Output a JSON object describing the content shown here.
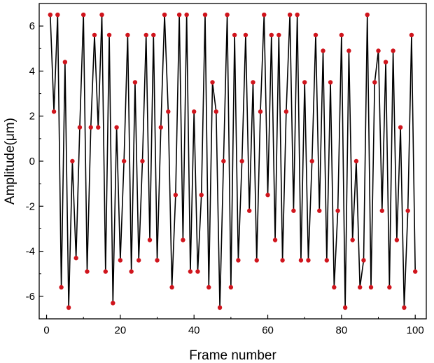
{
  "chart_data": {
    "type": "line",
    "xlabel": "Frame number",
    "ylabel": "Amplitude(μm)",
    "xlim": [
      -2,
      103
    ],
    "ylim": [
      -7,
      7
    ],
    "xticks": [
      0,
      20,
      40,
      60,
      80,
      100
    ],
    "yticks": [
      -6,
      -4,
      -2,
      0,
      2,
      4,
      6
    ],
    "xticks_labels": [
      "0",
      "20",
      "40",
      "60",
      "80",
      "100"
    ],
    "yticks_labels": [
      "-6",
      "-4",
      "-2",
      "0",
      "2",
      "4",
      "6"
    ],
    "grid": false,
    "legend": "none",
    "line_color": "#000000",
    "marker_color": "#d0141c",
    "series": [
      {
        "x": [
          1,
          2,
          3,
          4,
          5,
          6,
          7,
          8,
          9,
          10,
          11,
          12,
          13,
          14,
          15,
          16,
          17,
          18,
          19,
          20,
          21,
          22,
          23,
          24,
          25,
          26,
          27,
          28,
          29,
          30,
          31,
          32,
          33,
          34,
          35,
          36,
          37,
          38,
          39,
          40,
          41,
          42,
          43,
          44,
          45,
          46,
          47,
          48,
          49,
          50,
          51,
          52,
          53,
          54,
          55,
          56,
          57,
          58,
          59,
          60,
          61,
          62,
          63,
          64,
          65,
          66,
          67,
          68,
          69,
          70,
          71,
          72,
          73,
          74,
          75,
          76,
          77,
          78,
          79,
          80,
          81,
          82,
          83,
          84,
          85,
          86,
          87,
          88,
          89,
          90,
          91,
          92,
          93,
          94,
          95,
          96,
          97,
          98,
          99,
          100
        ],
        "values": [
          6.5,
          2.2,
          6.5,
          -5.6,
          4.4,
          -6.5,
          0,
          -4.3,
          1.5,
          6.5,
          -4.9,
          1.5,
          5.6,
          1.5,
          6.5,
          -4.9,
          5.6,
          -6.3,
          1.5,
          -4.4,
          0,
          5.6,
          -4.9,
          3.5,
          -4.4,
          0,
          5.6,
          -3.5,
          5.6,
          -4.4,
          1.5,
          6.5,
          2.2,
          -5.6,
          -1.5,
          6.5,
          -3.5,
          6.5,
          -4.9,
          2.2,
          -4.9,
          -1.5,
          6.5,
          -5.6,
          3.5,
          2.2,
          -6.5,
          0,
          6.5,
          -5.6,
          5.6,
          -4.4,
          0,
          5.6,
          -2.2,
          3.5,
          -4.4,
          2.2,
          6.5,
          -1.5,
          5.6,
          -3.5,
          5.6,
          -4.4,
          2.2,
          6.5,
          -2.2,
          6.5,
          -4.4,
          3.5,
          -4.4,
          0,
          5.6,
          -2.2,
          4.9,
          -4.4,
          3.5,
          -5.6,
          -2.2,
          5.6,
          -6.5,
          4.9,
          -3.5,
          0,
          -5.6,
          -4.4,
          6.5,
          -5.6,
          3.5,
          4.9,
          -2.2,
          4.4,
          -5.6,
          4.9,
          -3.5,
          1.5,
          -6.5,
          -2.2,
          5.6,
          -4.9
        ]
      }
    ]
  }
}
